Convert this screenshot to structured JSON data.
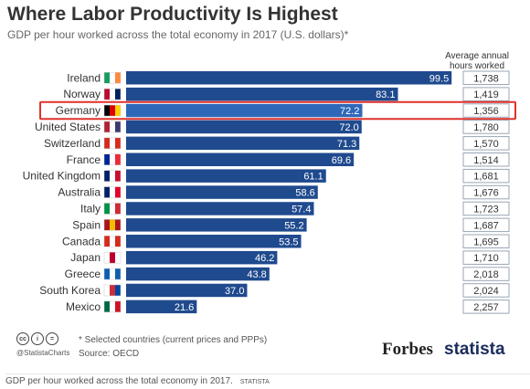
{
  "title": "Where Labor Productivity Is Highest",
  "subtitle": "GDP per hour worked across the total economy in 2017 (U.S. dollars)*",
  "hours_header": "Average annual hours worked",
  "footnote": "* Selected countries (current prices and PPPs)",
  "source": "Source: OECD",
  "handle": "@StatistaCharts",
  "cc_icons": [
    "cc",
    "i",
    "="
  ],
  "brands": {
    "forbes": "Forbes",
    "statista": "statista"
  },
  "caption": {
    "text": "GDP per hour worked across the total economy in 2017.",
    "source": "STATISTA"
  },
  "colors": {
    "bar": "#1f4a8e",
    "bar_highlight": "#2f68b8",
    "highlight_box": "#e0312b",
    "label_bg": "#2e5fa3"
  },
  "highlight": "Germany",
  "flags": [
    [
      "#169b62",
      "#ffffff",
      "#ff883e"
    ],
    [
      "#ba0c2f",
      "#ffffff",
      "#00205b"
    ],
    [
      "#000000",
      "#dd0000",
      "#ffce00"
    ],
    [
      "#b22234",
      "#ffffff",
      "#3c3b6e"
    ],
    [
      "#d52b1e",
      "#ffffff",
      "#d52b1e"
    ],
    [
      "#002395",
      "#ffffff",
      "#ed2939"
    ],
    [
      "#012169",
      "#ffffff",
      "#c8102e"
    ],
    [
      "#012169",
      "#ffffff",
      "#e4002b"
    ],
    [
      "#009246",
      "#ffffff",
      "#ce2b37"
    ],
    [
      "#aa151b",
      "#f1bf00",
      "#aa151b"
    ],
    [
      "#d52b1e",
      "#ffffff",
      "#d52b1e"
    ],
    [
      "#ffffff",
      "#bc002d",
      "#ffffff"
    ],
    [
      "#0d5eaf",
      "#ffffff",
      "#0d5eaf"
    ],
    [
      "#ffffff",
      "#cd2e3a",
      "#0047a0"
    ],
    [
      "#006847",
      "#ffffff",
      "#ce1126"
    ]
  ],
  "chart_data": {
    "type": "bar",
    "orientation": "horizontal",
    "categories": [
      "Ireland",
      "Norway",
      "Germany",
      "United States",
      "Switzerland",
      "France",
      "United Kingdom",
      "Australia",
      "Italy",
      "Spain",
      "Canada",
      "Japan",
      "Greece",
      "South Korea",
      "Mexico"
    ],
    "values": [
      99.5,
      83.1,
      72.2,
      72.0,
      71.3,
      69.6,
      61.1,
      58.6,
      57.4,
      55.2,
      53.5,
      46.2,
      43.8,
      37.0,
      21.6
    ],
    "value_labels": [
      "99.5",
      "83.1",
      "72.2",
      "72.0",
      "71.3",
      "69.6",
      "61.1",
      "58.6",
      "57.4",
      "55.2",
      "53.5",
      "46.2",
      "43.8",
      "37.0",
      "21.6"
    ],
    "hours": [
      "1,738",
      "1,419",
      "1,356",
      "1,780",
      "1,570",
      "1,514",
      "1,681",
      "1,676",
      "1,723",
      "1,687",
      "1,695",
      "1,710",
      "2,018",
      "2,024",
      "2,257"
    ],
    "xlim": [
      0,
      100
    ],
    "grid": false,
    "legend": "none"
  }
}
